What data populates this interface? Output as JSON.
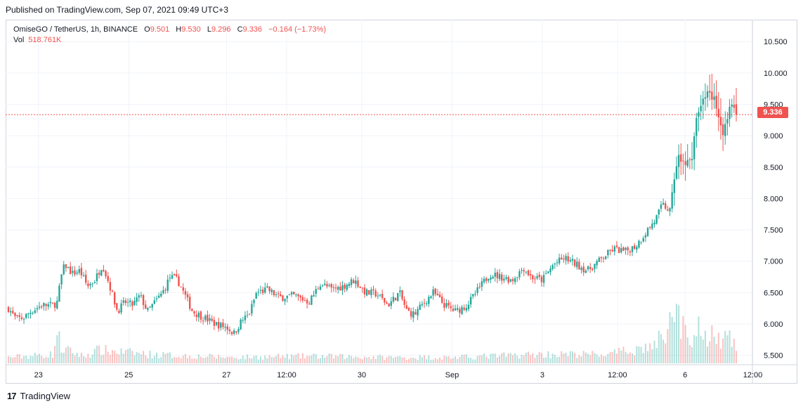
{
  "header": {
    "published": "Published on TradingView.com, Sep 07, 2021 09:49 UTC+3"
  },
  "legend": {
    "symbol": "OmiseGO / TetherUS, 1h, BINANCE",
    "open_label": "O",
    "open": "9.501",
    "high_label": "H",
    "high": "9.530",
    "low_label": "L",
    "low": "9.296",
    "close_label": "C",
    "close": "9.336",
    "change": "−0.164 (−1.73%)",
    "vol_label": "Vol",
    "vol_value": "518.761K"
  },
  "last_price_tag": "9.336",
  "footer": {
    "brand": "TradingView",
    "logo_glyph": "17"
  },
  "colors": {
    "up": "#26a69a",
    "down": "#ef5350",
    "grid": "#f0f3fa",
    "text": "#131722"
  },
  "chart_data": {
    "type": "candlestick",
    "symbol": "OmiseGO / TetherUS",
    "interval": "1h",
    "exchange": "BINANCE",
    "ylim": [
      5.35,
      10.85
    ],
    "y_ticks": [
      "5.500",
      "6.000",
      "6.500",
      "7.000",
      "7.500",
      "8.000",
      "8.500",
      "9.000",
      "9.500",
      "10.000",
      "10.500"
    ],
    "x_ticks": [
      {
        "label": "23",
        "x": 0.04
      },
      {
        "label": "25",
        "x": 0.16
      },
      {
        "label": "27",
        "x": 0.29
      },
      {
        "label": "12:00",
        "x": 0.37
      },
      {
        "label": "30",
        "x": 0.47
      },
      {
        "label": "Sep",
        "x": 0.59
      },
      {
        "label": "3",
        "x": 0.71
      },
      {
        "label": "12:00",
        "x": 0.81
      },
      {
        "label": "6",
        "x": 0.9
      },
      {
        "label": "12:00",
        "x": 0.99
      }
    ],
    "close_anchors": [
      [
        0,
        6.25
      ],
      [
        0.01,
        6.08
      ],
      [
        0.02,
        6.1
      ],
      [
        0.03,
        6.2
      ],
      [
        0.045,
        6.3
      ],
      [
        0.06,
        6.3
      ],
      [
        0.065,
        6.35
      ],
      [
        0.07,
        6.75
      ],
      [
        0.075,
        6.95
      ],
      [
        0.085,
        6.8
      ],
      [
        0.095,
        6.85
      ],
      [
        0.105,
        6.6
      ],
      [
        0.115,
        6.7
      ],
      [
        0.125,
        6.95
      ],
      [
        0.135,
        6.6
      ],
      [
        0.145,
        6.2
      ],
      [
        0.155,
        6.35
      ],
      [
        0.165,
        6.3
      ],
      [
        0.175,
        6.45
      ],
      [
        0.185,
        6.2
      ],
      [
        0.195,
        6.35
      ],
      [
        0.205,
        6.5
      ],
      [
        0.215,
        6.75
      ],
      [
        0.225,
        6.7
      ],
      [
        0.235,
        6.45
      ],
      [
        0.245,
        6.2
      ],
      [
        0.26,
        6.1
      ],
      [
        0.275,
        6.0
      ],
      [
        0.29,
        5.95
      ],
      [
        0.3,
        5.85
      ],
      [
        0.31,
        6.05
      ],
      [
        0.32,
        6.15
      ],
      [
        0.33,
        6.5
      ],
      [
        0.345,
        6.55
      ],
      [
        0.36,
        6.42
      ],
      [
        0.38,
        6.45
      ],
      [
        0.4,
        6.35
      ],
      [
        0.415,
        6.65
      ],
      [
        0.43,
        6.55
      ],
      [
        0.445,
        6.6
      ],
      [
        0.46,
        6.7
      ],
      [
        0.475,
        6.5
      ],
      [
        0.49,
        6.48
      ],
      [
        0.505,
        6.3
      ],
      [
        0.52,
        6.5
      ],
      [
        0.53,
        6.2
      ],
      [
        0.54,
        6.15
      ],
      [
        0.55,
        6.3
      ],
      [
        0.565,
        6.5
      ],
      [
        0.58,
        6.3
      ],
      [
        0.595,
        6.2
      ],
      [
        0.61,
        6.3
      ],
      [
        0.625,
        6.55
      ],
      [
        0.64,
        6.8
      ],
      [
        0.655,
        6.75
      ],
      [
        0.67,
        6.7
      ],
      [
        0.685,
        6.9
      ],
      [
        0.695,
        6.75
      ],
      [
        0.71,
        6.7
      ],
      [
        0.725,
        6.95
      ],
      [
        0.74,
        7.05
      ],
      [
        0.755,
        6.95
      ],
      [
        0.77,
        6.85
      ],
      [
        0.79,
        7.05
      ],
      [
        0.805,
        7.2
      ],
      [
        0.82,
        7.15
      ],
      [
        0.835,
        7.25
      ],
      [
        0.85,
        7.5
      ],
      [
        0.86,
        7.65
      ],
      [
        0.87,
        7.9
      ],
      [
        0.88,
        7.8
      ],
      [
        0.89,
        8.7
      ],
      [
        0.895,
        8.6
      ],
      [
        0.9,
        8.55
      ],
      [
        0.91,
        8.7
      ],
      [
        0.915,
        9.3
      ],
      [
        0.925,
        9.6
      ],
      [
        0.93,
        9.7
      ],
      [
        0.94,
        9.55
      ],
      [
        0.945,
        9.3
      ],
      [
        0.95,
        9.05
      ],
      [
        0.955,
        9.2
      ],
      [
        0.962,
        9.55
      ],
      [
        0.968,
        9.336
      ]
    ],
    "volume_anchors": [
      [
        0,
        0.1
      ],
      [
        0.06,
        0.15
      ],
      [
        0.065,
        0.55
      ],
      [
        0.07,
        0.25
      ],
      [
        0.1,
        0.12
      ],
      [
        0.12,
        0.22
      ],
      [
        0.14,
        0.2
      ],
      [
        0.2,
        0.14
      ],
      [
        0.3,
        0.1
      ],
      [
        0.4,
        0.12
      ],
      [
        0.5,
        0.1
      ],
      [
        0.6,
        0.1
      ],
      [
        0.7,
        0.15
      ],
      [
        0.8,
        0.15
      ],
      [
        0.86,
        0.3
      ],
      [
        0.89,
        0.8
      ],
      [
        0.9,
        0.5
      ],
      [
        0.91,
        0.3
      ],
      [
        0.92,
        0.65
      ],
      [
        0.93,
        0.4
      ],
      [
        0.94,
        0.55
      ],
      [
        0.95,
        0.3
      ],
      [
        0.96,
        0.6
      ],
      [
        0.968,
        0.2
      ]
    ],
    "n_bars": 330,
    "last_close": 9.336
  }
}
